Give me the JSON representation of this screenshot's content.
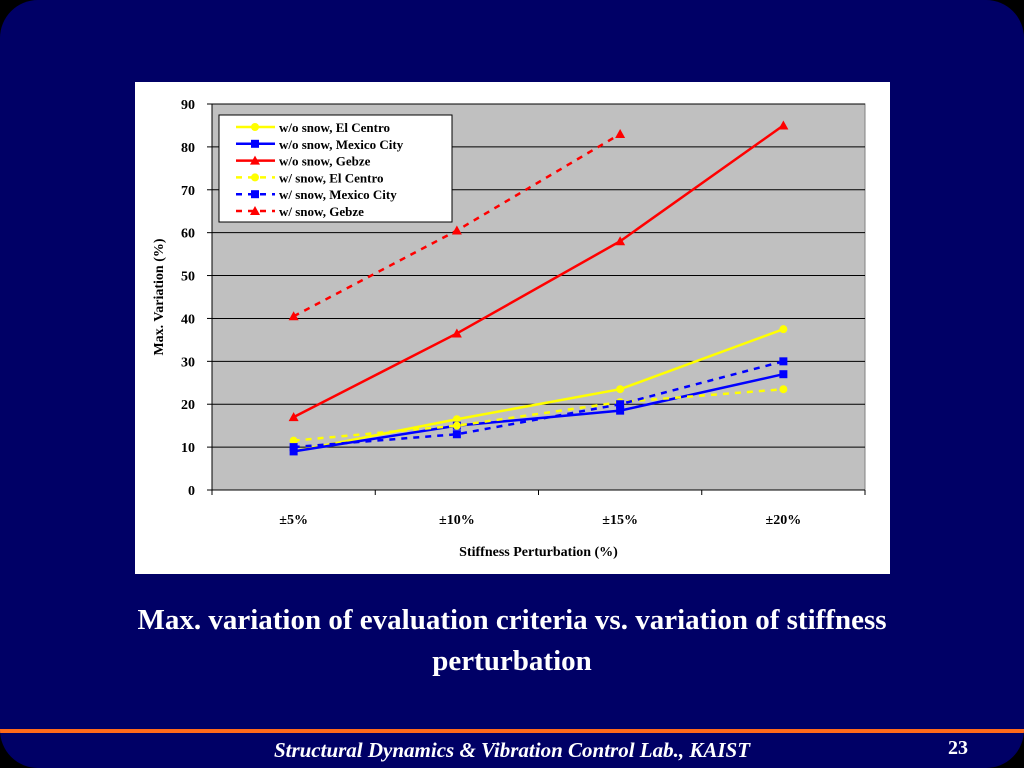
{
  "chart_data": {
    "type": "line",
    "categories": [
      "±5%",
      "±10%",
      "±15%",
      "±20%"
    ],
    "xlabel": "Stiffness Perturbation (%)",
    "ylabel": "Max. Variation (%)",
    "ylim": [
      0,
      90
    ],
    "yticks": [
      "0",
      "10",
      "20",
      "30",
      "40",
      "50",
      "60",
      "70",
      "80",
      "90"
    ],
    "grid": true,
    "legend_position": "top-left",
    "plot_background": "#c0c0c0",
    "series": [
      {
        "name": "w/o snow, El Centro",
        "values": [
          9,
          16.5,
          23.5,
          37.5
        ],
        "color": "#ffff00",
        "marker": "circle",
        "dashed": false
      },
      {
        "name": "w/o snow, Mexico City",
        "values": [
          9,
          15,
          18.5,
          27
        ],
        "color": "#0000ff",
        "marker": "square",
        "dashed": false
      },
      {
        "name": "w/o snow, Gebze",
        "values": [
          17,
          36.5,
          58,
          85
        ],
        "color": "#ff0000",
        "marker": "triangle",
        "dashed": false
      },
      {
        "name": "w/ snow, El Centro",
        "values": [
          11.5,
          15,
          20.5,
          23.5
        ],
        "color": "#ffff00",
        "marker": "circle",
        "dashed": true
      },
      {
        "name": "w/ snow, Mexico City",
        "values": [
          10,
          13,
          20,
          30
        ],
        "color": "#0000ff",
        "marker": "square",
        "dashed": true
      },
      {
        "name": "w/ snow, Gebze",
        "values": [
          40.5,
          60.5,
          83,
          null
        ],
        "color": "#ff0000",
        "marker": "triangle",
        "dashed": true
      }
    ]
  },
  "caption": "Max. variation of evaluation criteria vs. variation of stiffness perturbation",
  "footer": {
    "lab": "Structural Dynamics & Vibration Control Lab., KAIST",
    "page_number": "23"
  },
  "colors": {
    "slide_background": "#000066",
    "footer_rule": "#ff6a1a"
  }
}
